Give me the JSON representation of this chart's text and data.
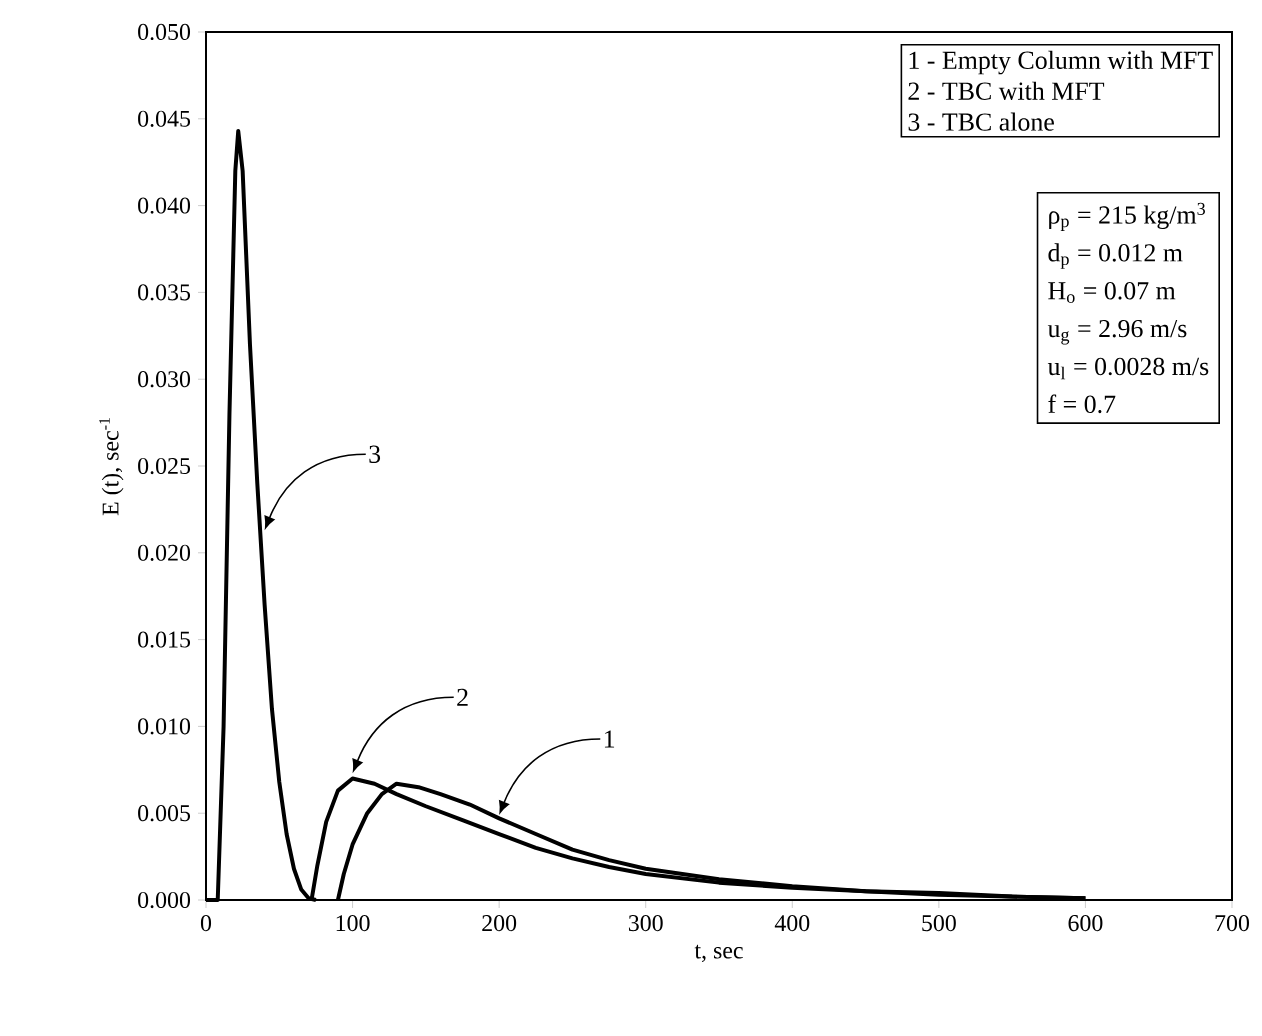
{
  "chart_data": {
    "type": "line",
    "xlabel": "t, sec",
    "ylabel": "E (t), sec$^{-1}$",
    "xlim": [
      0,
      700
    ],
    "xticks": [
      0,
      100,
      200,
      300,
      400,
      500,
      600,
      700
    ],
    "ylim": [
      0,
      0.05
    ],
    "yticks": [
      {
        "value": 0,
        "label": "0.000"
      },
      {
        "value": 0.005,
        "label": "0.005"
      },
      {
        "value": 0.01,
        "label": "0.010"
      },
      {
        "value": 0.015,
        "label": "0.015"
      },
      {
        "value": 0.02,
        "label": "0.020"
      },
      {
        "value": 0.025,
        "label": "0.025"
      },
      {
        "value": 0.03,
        "label": "0.030"
      },
      {
        "value": 0.035,
        "label": "0.035"
      },
      {
        "value": 0.04,
        "label": "0.040"
      },
      {
        "value": 0.045,
        "label": "0.045"
      },
      {
        "value": 0.05,
        "label": "0.050"
      }
    ],
    "grid": false,
    "marker": "none",
    "line_style": "solid",
    "series": [
      {
        "color": "#000000",
        "x": [
          90,
          94,
          100,
          110,
          120,
          130,
          145,
          160,
          180,
          200,
          225,
          250,
          275,
          300,
          350,
          400,
          450,
          500,
          550,
          600
        ],
        "values": [
          0,
          0.0015,
          0.0032,
          0.005,
          0.0061,
          0.0067,
          0.0065,
          0.0061,
          0.0055,
          0.0047,
          0.0038,
          0.0029,
          0.0023,
          0.0018,
          0.0012,
          0.0008,
          0.0005,
          0.0004,
          0.0002,
          0.0001
        ]
      },
      {
        "color": "#000000",
        "x": [
          72,
          76,
          82,
          90,
          100,
          115,
          130,
          150,
          175,
          200,
          225,
          250,
          275,
          300,
          350,
          400,
          450,
          500,
          550,
          600
        ],
        "values": [
          0,
          0.002,
          0.0045,
          0.0063,
          0.007,
          0.0067,
          0.0061,
          0.0054,
          0.0046,
          0.0038,
          0.003,
          0.0024,
          0.0019,
          0.0015,
          0.001,
          0.0007,
          0.0005,
          0.0003,
          0.0002,
          0.0001
        ]
      },
      {
        "color": "#000000",
        "x": [
          0,
          8,
          12,
          16,
          20,
          22,
          25,
          30,
          35,
          40,
          45,
          50,
          55,
          60,
          65,
          70,
          75
        ],
        "values": [
          0,
          0,
          0.01,
          0.028,
          0.042,
          0.0443,
          0.042,
          0.032,
          0.024,
          0.017,
          0.011,
          0.0068,
          0.0038,
          0.0018,
          0.0006,
          0.0001,
          0
        ]
      }
    ],
    "annotations": [
      {
        "text": "1",
        "x": 200,
        "y": 0.0049
      },
      {
        "text": "2",
        "x": 100,
        "y": 0.0073
      },
      {
        "text": "3",
        "x": 40,
        "y": 0.0213
      },
      "1 - Empty Column with MFT",
      "2 - TBC with MFT",
      "3 - TBC alone",
      "ρ$_{p}$  =  215 kg/m$^{3}$",
      "d$_{p}$  = 0.012 m",
      "H$_{o}$ = 0.07 m",
      "u$_{g}$  =  2.96 m/s",
      "u$_{l}$   = 0.0028 m/s",
      "f    =  0.7"
    ]
  }
}
